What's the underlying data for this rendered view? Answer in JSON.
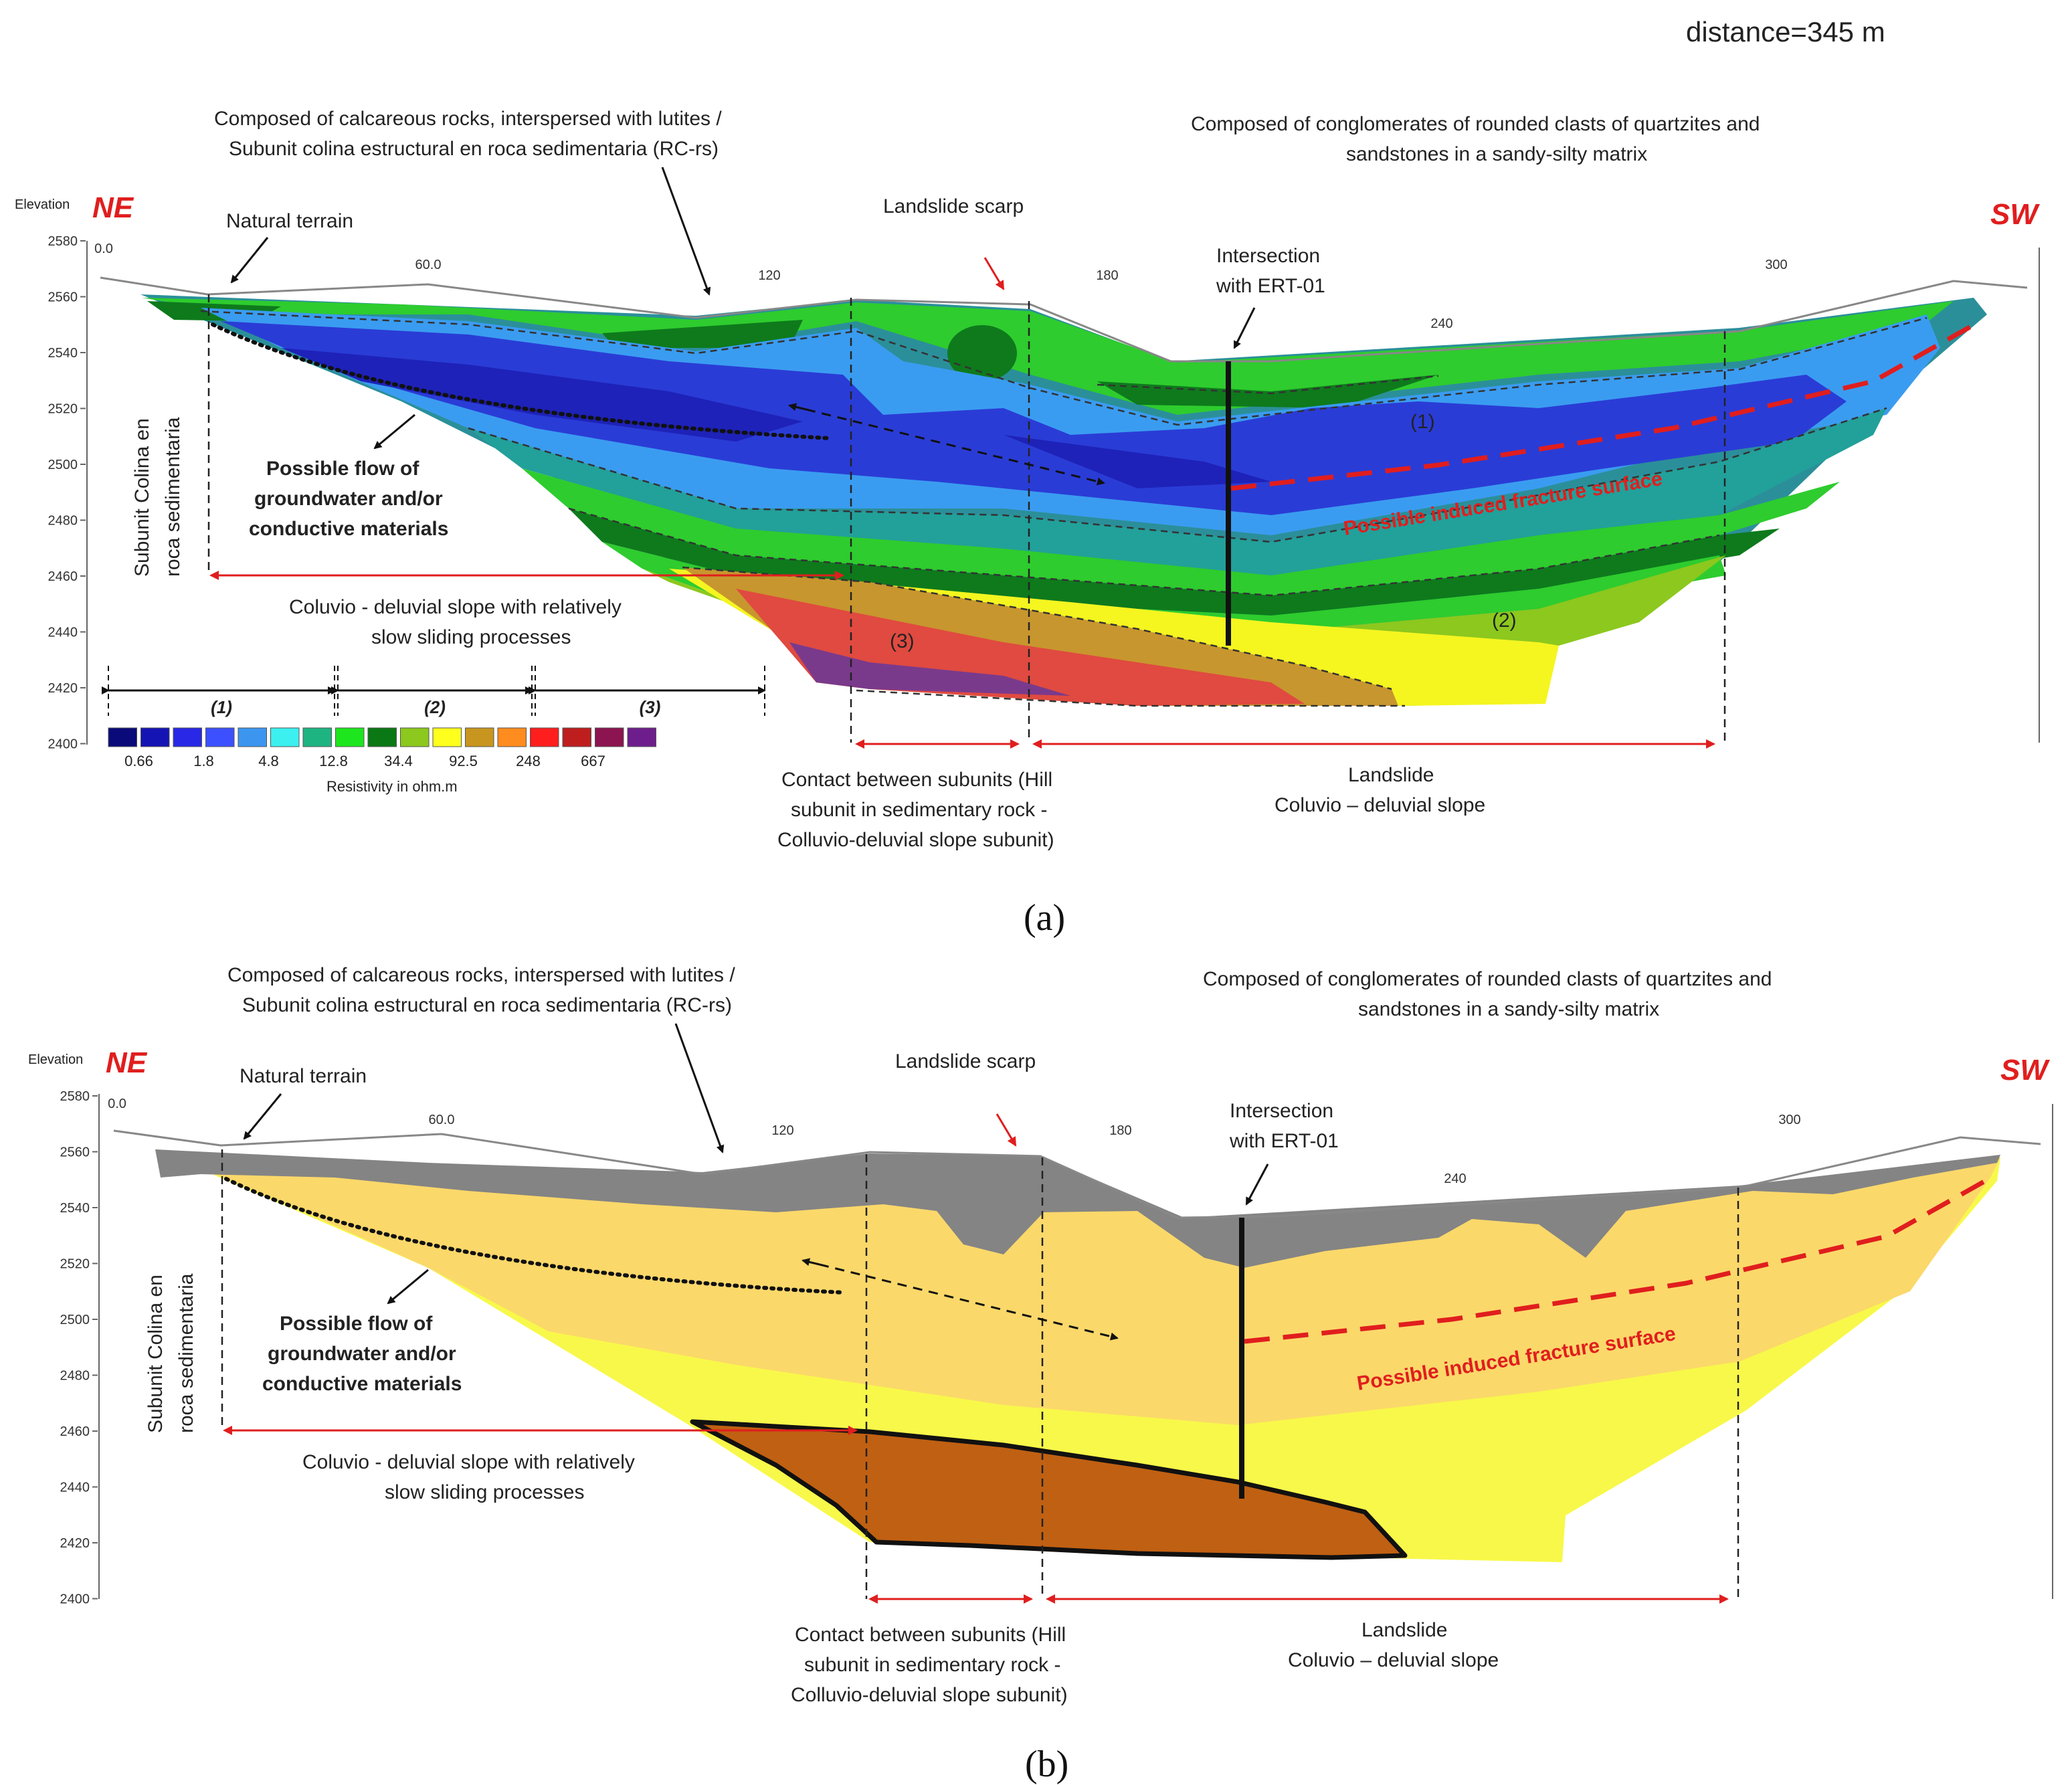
{
  "header": {
    "distance": "distance=345 m"
  },
  "panels": [
    {
      "id": "a",
      "caption_letter": "a",
      "axis": {
        "ylabel": "Elevation",
        "yticks": [
          "2580",
          "2560",
          "2540",
          "2520",
          "2500",
          "2480",
          "2460",
          "2440",
          "2420",
          "2400"
        ],
        "xticks": [
          "0.0",
          "60.0",
          "120",
          "180",
          "240",
          "300"
        ]
      },
      "ne": "NE",
      "sw": "SW",
      "natural_terrain": "Natural terrain",
      "comp_left": [
        "Composed of calcareous rocks, interspersed with lutites /",
        "Subunit colina estructural en roca sedimentaria (RC-rs)"
      ],
      "comp_right": [
        "Composed of conglomerates of rounded clasts of quartzites and",
        "sandstones in a sandy-silty matrix"
      ],
      "scarp": "Landslide scarp",
      "intersection": [
        "Intersection",
        "with ERT-01"
      ],
      "subunit_vertical": [
        "Subunit Colina en",
        "roca sedimentaria"
      ],
      "flow": [
        "Possible flow of",
        "groundwater and/or",
        "conductive materials"
      ],
      "fracture": "Possible induced fracture surface",
      "coluvio": [
        "Coluvio - deluvial slope with relatively",
        "slow sliding processes"
      ],
      "contact": [
        "Contact between subunits (Hill",
        "subunit in sedimentary rock -",
        "Colluvio-deluvial slope subunit)"
      ],
      "landslide": [
        "Landslide",
        "Coluvio – deluvial slope"
      ],
      "zones": [
        "(1)",
        "(2)",
        "(3)"
      ],
      "legend": {
        "groups": [
          "(1)",
          "(2)",
          "(3)"
        ],
        "colors": [
          "#0a0a7a",
          "#1414b4",
          "#2828e6",
          "#3c50ff",
          "#3c96f0",
          "#3cf0f0",
          "#1eb482",
          "#1ee61e",
          "#0a7814",
          "#8cc81e",
          "#ffff1e",
          "#c8961e",
          "#ff8c1e",
          "#ff1e1e",
          "#be1e1e",
          "#8c1450",
          "#6e1e8c"
        ],
        "values": [
          "0.66",
          "1.8",
          "4.8",
          "12.8",
          "34.4",
          "92.5",
          "248",
          "667"
        ],
        "title": "Resistivity in ohm.m"
      }
    },
    {
      "id": "b",
      "caption_letter": "b",
      "axis": {
        "ylabel": "Elevation",
        "yticks": [
          "2580",
          "2560",
          "2540",
          "2520",
          "2500",
          "2480",
          "2460",
          "2440",
          "2420",
          "2400"
        ],
        "xticks": [
          "0.0",
          "60.0",
          "120",
          "180",
          "240",
          "300"
        ]
      },
      "ne": "NE",
      "sw": "SW",
      "natural_terrain": "Natural terrain",
      "comp_left": [
        "Composed of calcareous rocks, interspersed with lutites /",
        "Subunit colina estructural en roca sedimentaria (RC-rs)"
      ],
      "comp_right": [
        "Composed of conglomerates of rounded clasts of quartzites and",
        "sandstones in a sandy-silty matrix"
      ],
      "scarp": "Landslide scarp",
      "intersection": [
        "Intersection",
        "with ERT-01"
      ],
      "subunit_vertical": [
        "Subunit Colina en",
        "roca sedimentaria"
      ],
      "flow": [
        "Possible flow of",
        "groundwater and/or",
        "conductive materials"
      ],
      "fracture": "Possible induced fracture surface",
      "coluvio": [
        "Coluvio - deluvial slope with relatively",
        "slow sliding processes"
      ],
      "contact": [
        "Contact between subunits (Hill",
        "subunit in sedimentary rock -",
        "Colluvio-deluvial slope subunit)"
      ],
      "landslide": [
        "Landslide",
        "Coluvio – deluvial slope"
      ]
    }
  ]
}
